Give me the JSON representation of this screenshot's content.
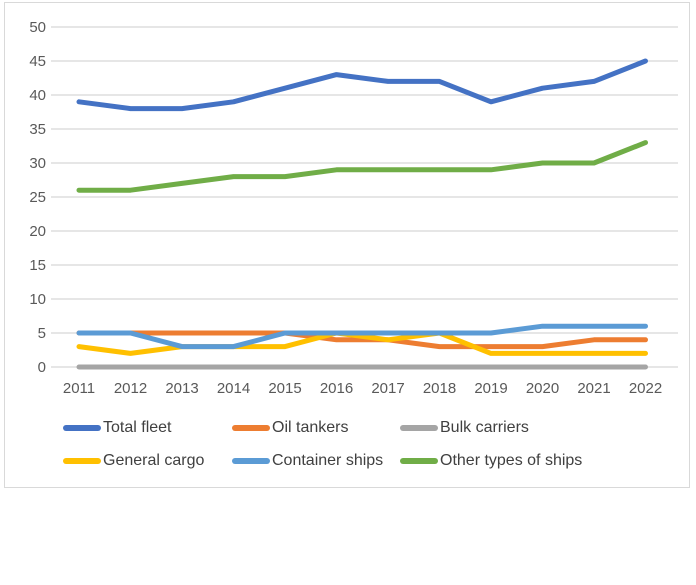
{
  "chart_data": {
    "type": "line",
    "title": "",
    "xlabel": "",
    "ylabel": "",
    "categories": [
      "2011",
      "2012",
      "2013",
      "2014",
      "2015",
      "2016",
      "2017",
      "2018",
      "2019",
      "2020",
      "2021",
      "2022"
    ],
    "series": [
      {
        "name": "Total fleet",
        "color": "#4472C4",
        "values": [
          39,
          38,
          38,
          39,
          41,
          43,
          42,
          42,
          39,
          41,
          42,
          45
        ]
      },
      {
        "name": "Oil tankers",
        "color": "#ED7D31",
        "values": [
          5,
          5,
          5,
          5,
          5,
          4,
          4,
          3,
          3,
          3,
          4,
          4
        ]
      },
      {
        "name": "Bulk carriers",
        "color": "#A5A5A5",
        "values": [
          0,
          0,
          0,
          0,
          0,
          0,
          0,
          0,
          0,
          0,
          0,
          0
        ]
      },
      {
        "name": "General cargo",
        "color": "#FFC000",
        "values": [
          3,
          2,
          3,
          3,
          3,
          5,
          4,
          5,
          2,
          2,
          2,
          2
        ]
      },
      {
        "name": "Container ships",
        "color": "#5B9BD5",
        "values": [
          5,
          5,
          3,
          3,
          5,
          5,
          5,
          5,
          5,
          6,
          6,
          6
        ]
      },
      {
        "name": "Other types of ships",
        "color": "#70AD47",
        "values": [
          26,
          26,
          27,
          28,
          28,
          29,
          29,
          29,
          29,
          30,
          30,
          33
        ]
      }
    ],
    "y_ticks": [
      0,
      5,
      10,
      15,
      20,
      25,
      30,
      35,
      40,
      45,
      50
    ],
    "ylim": [
      0,
      50
    ],
    "grid": true,
    "legend_position": "bottom",
    "colors": {
      "gridline": "#d6d6d6",
      "axis_label": "#595959",
      "legend_text": "#404040",
      "frame_border": "#d9d9d9",
      "background": "#ffffff"
    }
  }
}
